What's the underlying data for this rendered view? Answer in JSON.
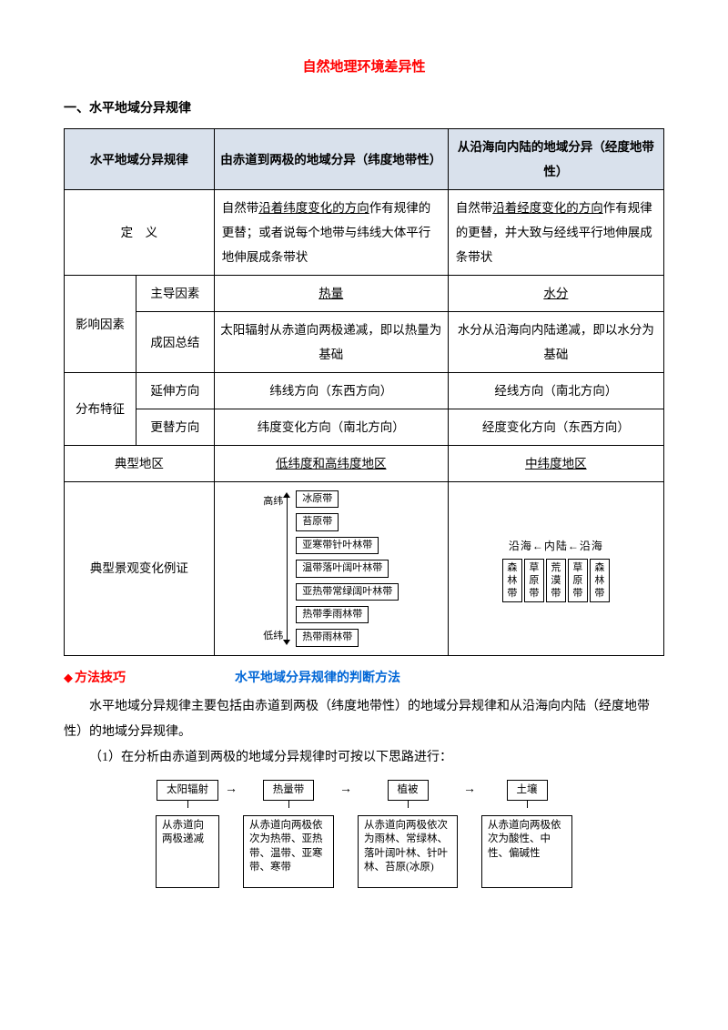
{
  "title": "自然地理环境差异性",
  "section1_heading": "一、水平地域分异规律",
  "table": {
    "header": {
      "c1": "水平地域分异规律",
      "c2": "由赤道到两极的地域分异（纬度地带性）",
      "c3": "从沿海向内陆的地域分异（经度地带性）"
    },
    "row_def": {
      "label": "定　义",
      "c2": "自然带沿着纬度变化的方向作有规律的更替；或者说每个地带与纬线大体平行地伸展成条带状",
      "c3": "自然带沿着经度变化的方向作有规律的更替，并大致与经线平行地伸展成条带状"
    },
    "row_factor_label": "影响因素",
    "row_main_factor": {
      "label": "主导因素",
      "c2": "热量",
      "c3": "水分"
    },
    "row_cause": {
      "label": "成因总结",
      "c2": "太阳辐射从赤道向两极递减，即以热量为基础",
      "c3": "水分从沿海向内陆递减，即以水分为基础"
    },
    "row_dist_label": "分布特征",
    "row_extend": {
      "label": "延伸方向",
      "c2": "纬线方向（东西方向）",
      "c3": "经线方向（南北方向）"
    },
    "row_change": {
      "label": "更替方向",
      "c2": "纬度变化方向（南北方向）",
      "c3": "经度变化方向（东西方向）"
    },
    "row_region": {
      "label": "典型地区",
      "c2": "低纬度和高纬度地区",
      "c3": "中纬度地区"
    },
    "row_example_label": "典型景观变化例证"
  },
  "lat_diagram": {
    "top_label": "高纬",
    "bot_label": "低纬",
    "zones": [
      "冰原带",
      "苔原带",
      "亚寒带针叶林带",
      "温带落叶阔叶林带",
      "亚热带常绿阔叶林带",
      "热带季雨林带",
      "热带雨林带"
    ]
  },
  "lon_diagram": {
    "header": "沿海←内陆←沿海",
    "cells": [
      "森林带",
      "草原带",
      "荒漠带",
      "草原带",
      "森林带"
    ]
  },
  "method": {
    "diamond": "◆",
    "label": "方法技巧",
    "title": "水平地域分异规律的判断方法",
    "para1": "水平地域分异规律主要包括由赤道到两极（纬度地带性）的地域分异规律和从沿海向内陆（经度地带性）的地域分异规律。",
    "para2": "（1）在分析由赤道到两极的地域分异规律时可按以下思路进行："
  },
  "flow": {
    "n1": {
      "head": "太阳辐射",
      "body": "从赤道向两极递减"
    },
    "n2": {
      "head": "热量带",
      "body": "从赤道向两极依次为热带、亚热带、温带、亚寒带、寒带"
    },
    "n3": {
      "head": "植被",
      "body": "从赤道向两极依次为雨林、常绿林、落叶阔叶林、针叶林、苔原(冰原)"
    },
    "n4": {
      "head": "土壤",
      "body": "从赤道向两极依次为酸性、中性、偏碱性"
    },
    "arrow": "→"
  }
}
